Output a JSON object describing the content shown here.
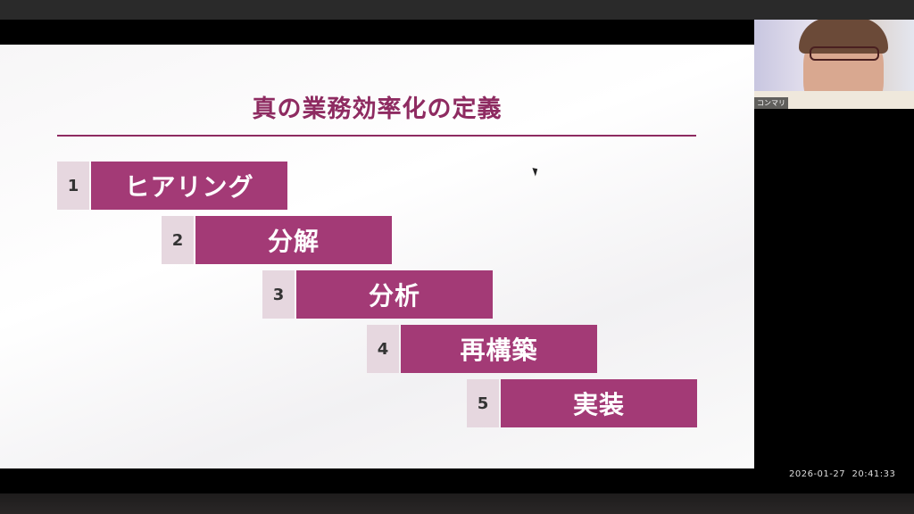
{
  "slide": {
    "title": "真の業務効率化の定義",
    "accent_color": "#a33a76",
    "steps": [
      {
        "number": "1",
        "label": "ヒアリング"
      },
      {
        "number": "2",
        "label": "分解"
      },
      {
        "number": "3",
        "label": "分析"
      },
      {
        "number": "4",
        "label": "再構築"
      },
      {
        "number": "5",
        "label": "実装"
      }
    ]
  },
  "video": {
    "participant_name": "コンマリ"
  },
  "timestamp": "2026-01-27  20:41:33"
}
